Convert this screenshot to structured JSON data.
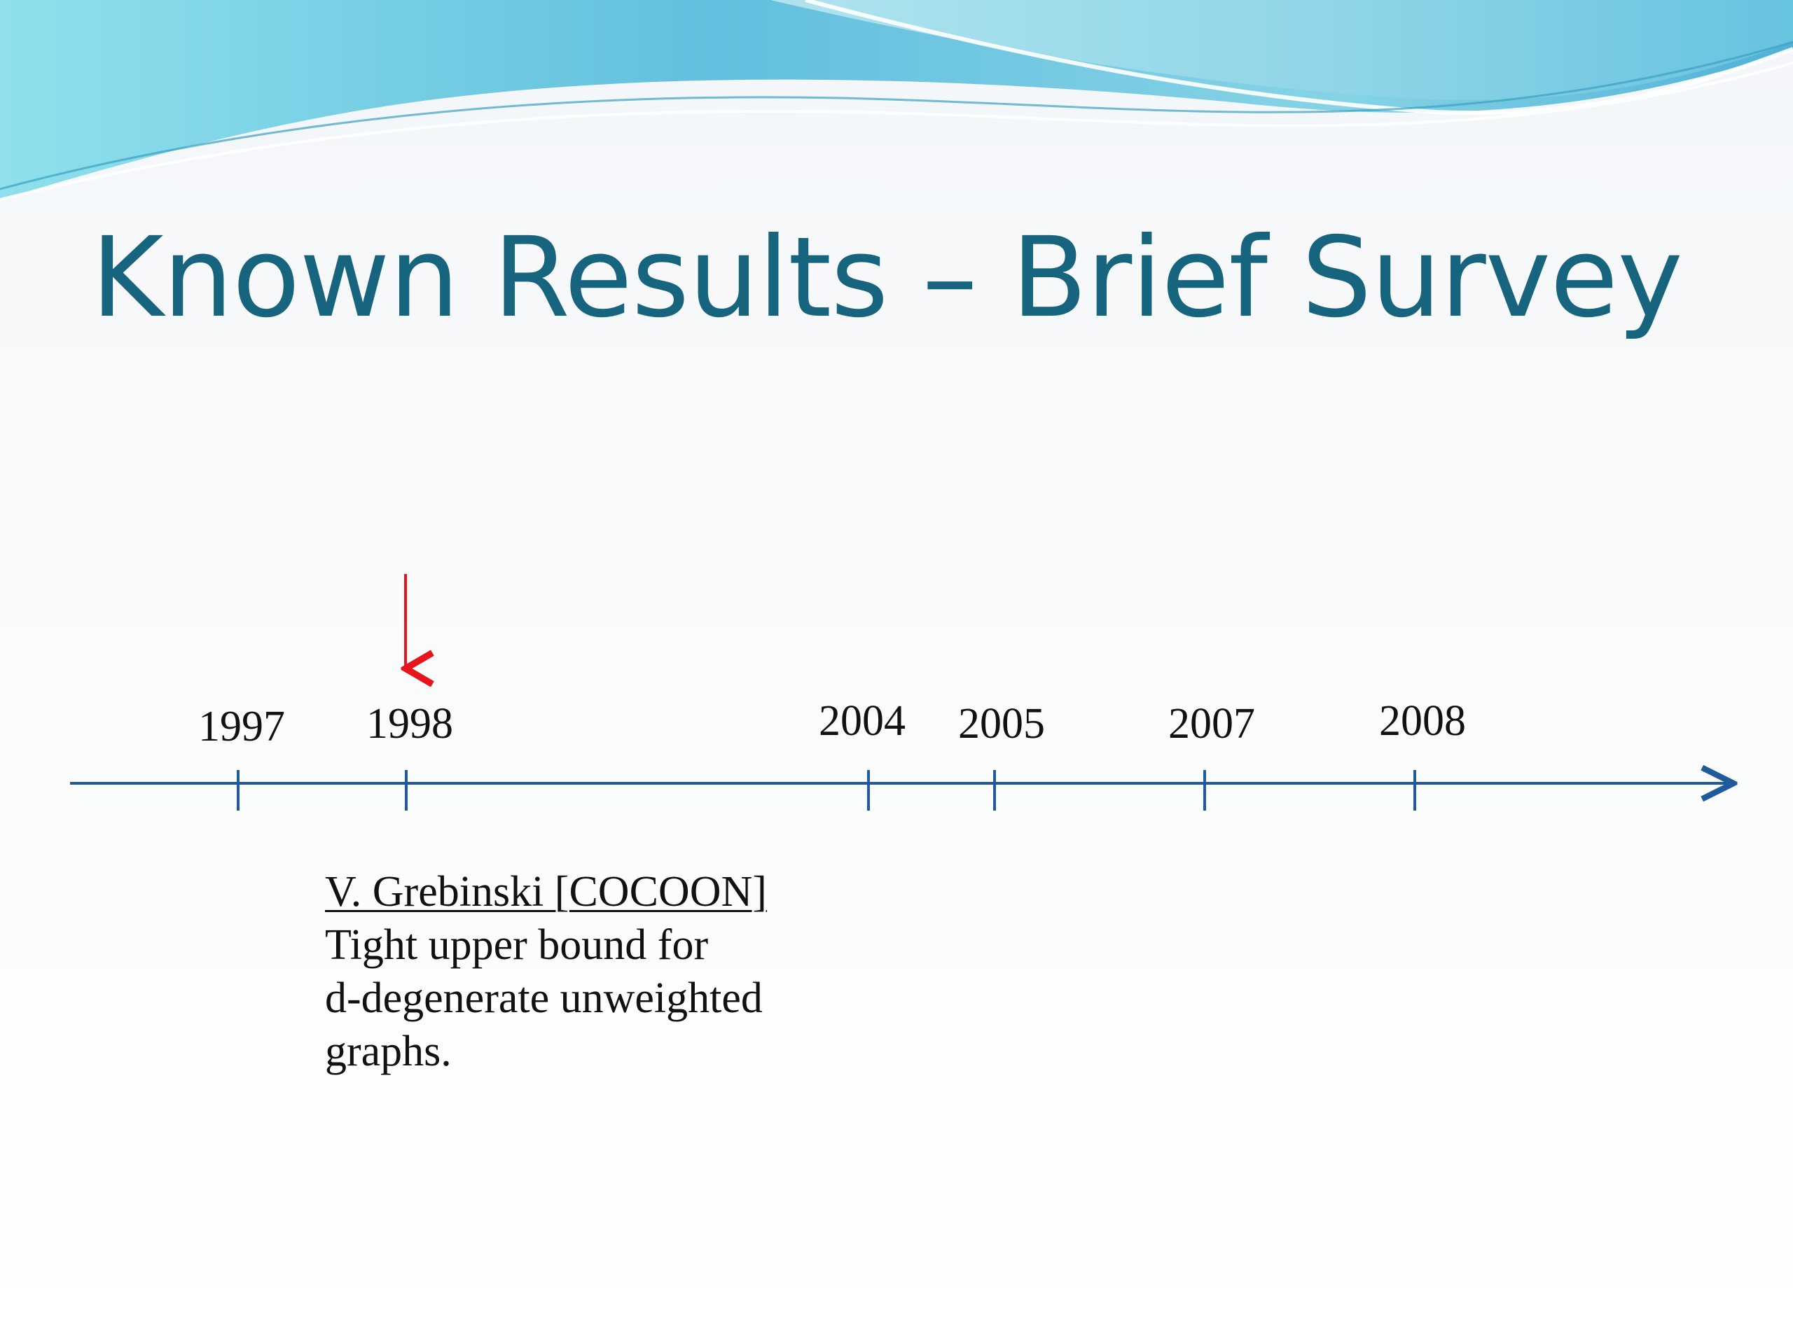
{
  "slide": {
    "title": "Known Results – Brief Survey"
  },
  "timeline": {
    "years": [
      "1997",
      "1998",
      "2004",
      "2005",
      "2007",
      "2008"
    ],
    "highlighted_year": "1998",
    "axis_color": "#1f5a9c",
    "marker_color": "#e8141c"
  },
  "annotation": {
    "heading": "V. Grebinski [COCOON]",
    "lines": [
      "Tight upper bound for",
      "d-degenerate unweighted",
      "graphs."
    ]
  },
  "colors": {
    "title": "#16647e",
    "wave_light": "#9fdde8",
    "wave_dark": "#3aa6c9"
  }
}
